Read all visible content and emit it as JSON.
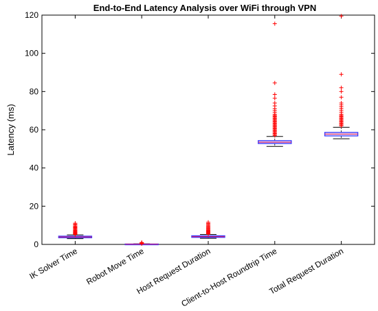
{
  "chart_data": {
    "type": "boxplot",
    "title": "End-to-End Latency Analysis over WiFi through VPN",
    "ylabel": "Latency (ms)",
    "xlabel": "",
    "ylim": [
      0,
      120
    ],
    "yticks": [
      0,
      20,
      40,
      60,
      80,
      100,
      120
    ],
    "grid": false,
    "colors": {
      "box": "#3a3aff",
      "median": "#d0206e",
      "outlier": "#ff0000",
      "whisker": "#000000",
      "axis": "#000000"
    },
    "categories": [
      "IK Solver Time",
      "Robot Move Time",
      "Host Request Duration",
      "Client-to-Host Roundtrip Time",
      "Total Request Duration"
    ],
    "boxes": [
      {
        "whisker_low": 3.0,
        "q1": 3.5,
        "median": 3.9,
        "q3": 4.3,
        "whisker_high": 5.0,
        "outliers": [
          5.2,
          5.4,
          5.6,
          5.8,
          6.0,
          6.2,
          6.4,
          6.7,
          7.0,
          7.3,
          7.6,
          8.0,
          8.4,
          8.8,
          9.2,
          9.6,
          10.1,
          10.6,
          11.1
        ]
      },
      {
        "whisker_low": 0.05,
        "q1": 0.1,
        "median": 0.15,
        "q3": 0.2,
        "whisker_high": 0.3,
        "outliers": [
          0.4,
          0.5,
          0.6,
          0.8,
          1.0
        ]
      },
      {
        "whisker_low": 3.2,
        "q1": 3.7,
        "median": 4.1,
        "q3": 4.5,
        "whisker_high": 5.2,
        "outliers": [
          5.4,
          5.6,
          5.8,
          6.0,
          6.2,
          6.5,
          6.8,
          7.1,
          7.4,
          7.8,
          8.2,
          8.6,
          9.0,
          9.5,
          10.0,
          10.5,
          11.0,
          11.6
        ]
      },
      {
        "whisker_low": 51.3,
        "q1": 52.8,
        "median": 53.5,
        "q3": 54.3,
        "whisker_high": 56.5,
        "outliers": [
          57.0,
          57.5,
          58.0,
          58.5,
          59.0,
          59.5,
          60.0,
          60.5,
          61.0,
          61.5,
          62.0,
          62.5,
          63.0,
          63.5,
          64.0,
          64.5,
          65.0,
          65.5,
          66.0,
          66.5,
          67.0,
          67.5,
          68.0,
          69.0,
          70.0,
          71.0,
          72.5,
          74.0,
          76.5,
          78.5,
          84.5,
          115.5
        ]
      },
      {
        "whisker_low": 55.3,
        "q1": 56.8,
        "median": 57.7,
        "q3": 58.6,
        "whisker_high": 61.3,
        "outliers": [
          62.0,
          62.5,
          63.0,
          63.5,
          64.0,
          64.5,
          65.0,
          65.5,
          66.0,
          66.5,
          67.0,
          67.5,
          68.0,
          69.0,
          70.0,
          71.0,
          72.0,
          73.0,
          74.0,
          77.0,
          80.0,
          82.0,
          89.0,
          119.5
        ]
      }
    ]
  }
}
